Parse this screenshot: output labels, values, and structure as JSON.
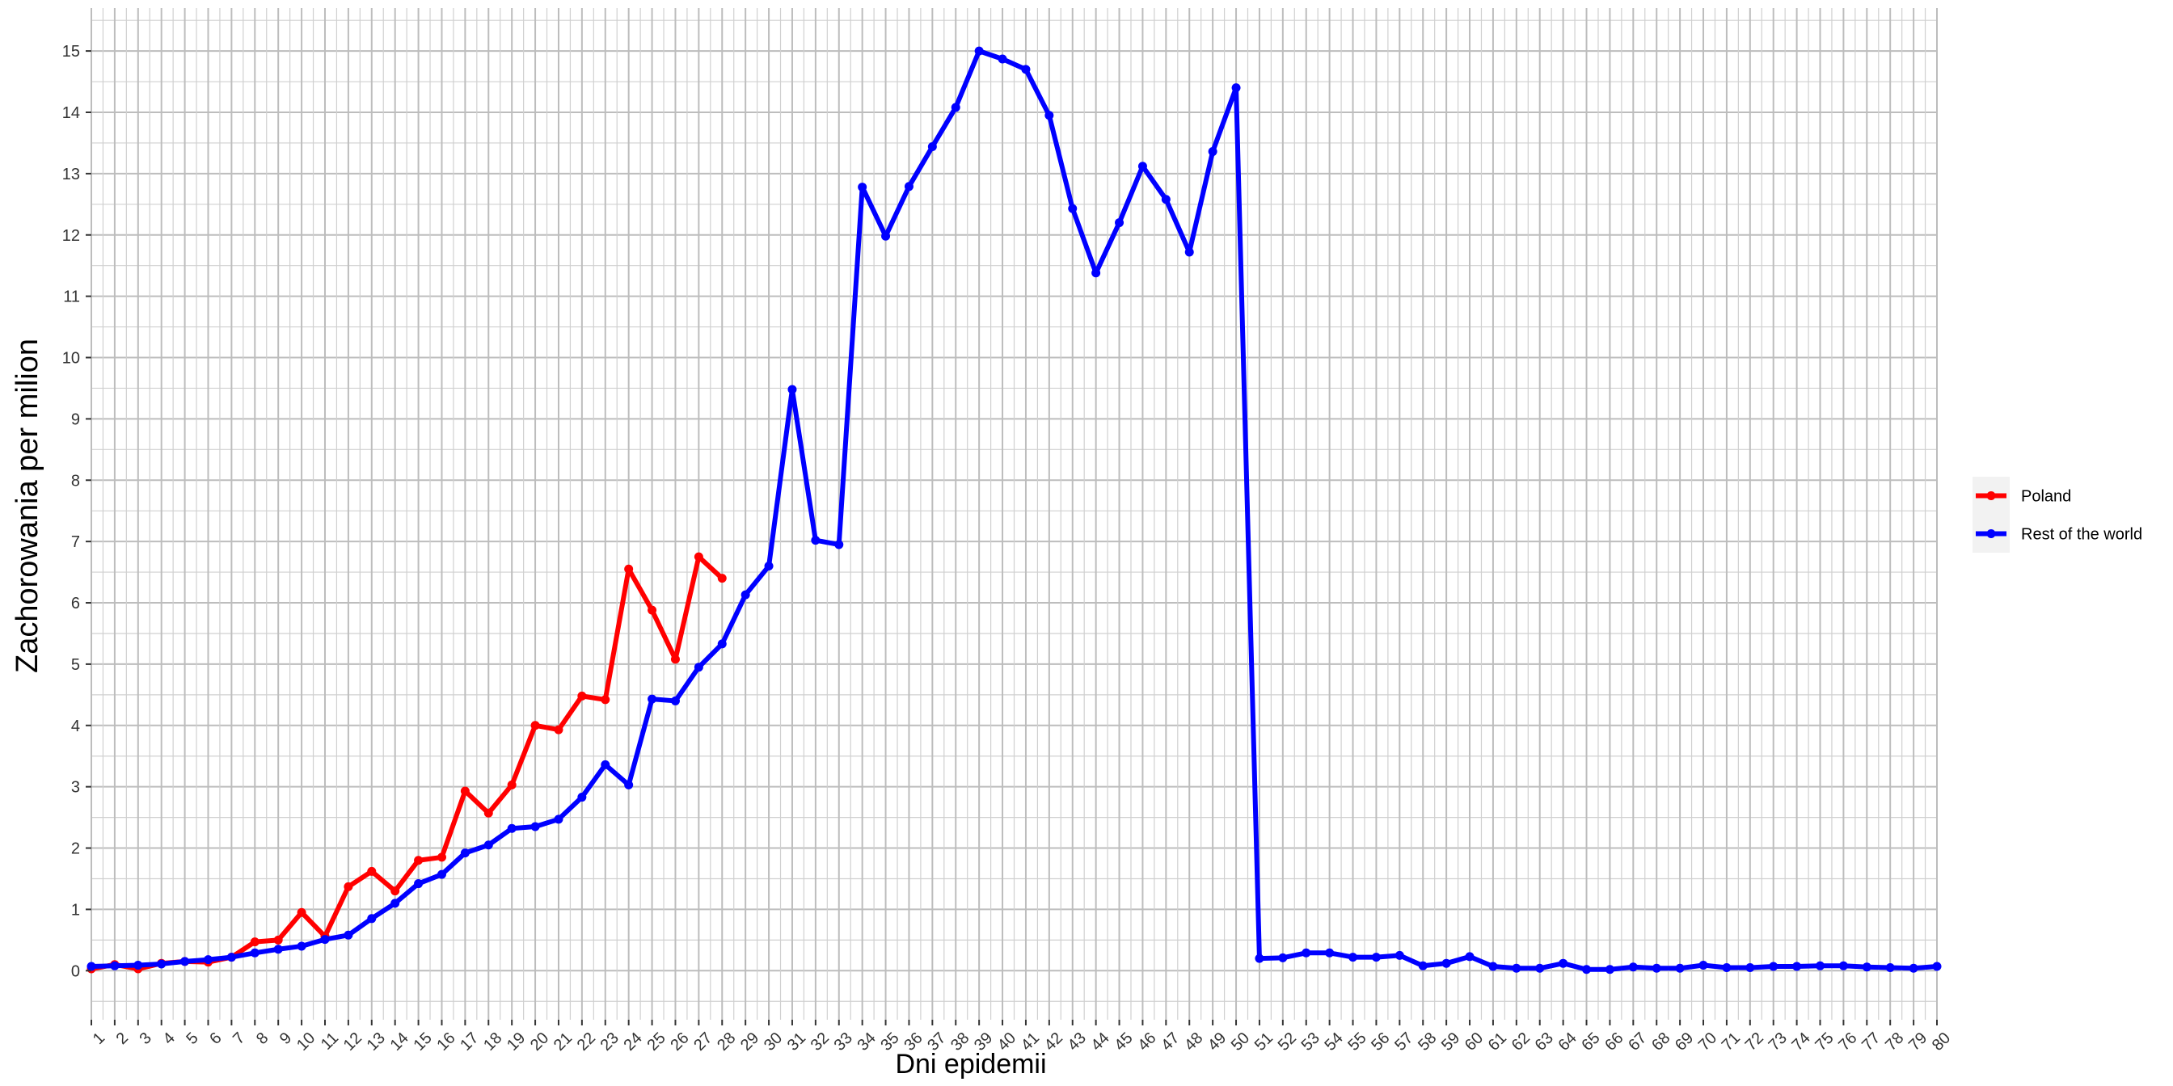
{
  "chart_data": {
    "type": "line",
    "title": "",
    "xlabel": "Dni epidemii",
    "ylabel": "Zachorowania per milion",
    "xlim": [
      1,
      80
    ],
    "ylim": [
      -0.8,
      15.7
    ],
    "y_ticks": [
      0,
      1,
      2,
      3,
      4,
      5,
      6,
      7,
      8,
      9,
      10,
      11,
      12,
      13,
      14,
      15
    ],
    "x_ticks": [
      1,
      2,
      3,
      4,
      5,
      6,
      7,
      8,
      9,
      10,
      11,
      12,
      13,
      14,
      15,
      16,
      17,
      18,
      19,
      20,
      21,
      22,
      23,
      24,
      25,
      26,
      27,
      28,
      29,
      30,
      31,
      32,
      33,
      34,
      35,
      36,
      37,
      38,
      39,
      40,
      41,
      42,
      43,
      44,
      45,
      46,
      47,
      48,
      49,
      50,
      51,
      52,
      53,
      54,
      55,
      56,
      57,
      58,
      59,
      60,
      61,
      62,
      63,
      64,
      65,
      66,
      67,
      68,
      69,
      70,
      71,
      72,
      73,
      74,
      75,
      76,
      77,
      78,
      79,
      80
    ],
    "grid": true,
    "legend_position": "right",
    "series": [
      {
        "name": "Poland",
        "color": "#ff0000",
        "x": [
          1,
          2,
          3,
          4,
          5,
          6,
          7,
          8,
          9,
          10,
          11,
          12,
          13,
          14,
          15,
          16,
          17,
          18,
          19,
          20,
          21,
          22,
          23,
          24,
          25,
          26,
          27,
          28
        ],
        "y": [
          0.03,
          0.1,
          0.03,
          0.12,
          0.15,
          0.14,
          0.22,
          0.47,
          0.5,
          0.95,
          0.56,
          1.37,
          1.62,
          1.3,
          1.8,
          1.85,
          2.93,
          2.57,
          3.03,
          4.0,
          3.93,
          4.48,
          4.42,
          6.55,
          5.88,
          5.08,
          6.75,
          6.4
        ]
      },
      {
        "name": "Rest of the world",
        "color": "#0000ff",
        "x": [
          1,
          2,
          3,
          4,
          5,
          6,
          7,
          8,
          9,
          10,
          11,
          12,
          13,
          14,
          15,
          16,
          17,
          18,
          19,
          20,
          21,
          22,
          23,
          24,
          25,
          26,
          27,
          28,
          29,
          30,
          31,
          32,
          33,
          34,
          35,
          36,
          37,
          38,
          39,
          40,
          41,
          42,
          43,
          44,
          45,
          46,
          47,
          48,
          49,
          50,
          51,
          52,
          53,
          54,
          55,
          56,
          57,
          58,
          59,
          60,
          61,
          62,
          63,
          64,
          65,
          66,
          67,
          68,
          69,
          70,
          71,
          72,
          73,
          74,
          75,
          76,
          77,
          78,
          79,
          80
        ],
        "y": [
          0.07,
          0.08,
          0.09,
          0.11,
          0.15,
          0.18,
          0.22,
          0.29,
          0.35,
          0.4,
          0.51,
          0.58,
          0.85,
          1.1,
          1.42,
          1.57,
          1.92,
          2.05,
          2.32,
          2.35,
          2.47,
          2.83,
          3.36,
          3.03,
          4.43,
          4.4,
          4.95,
          5.33,
          6.13,
          6.6,
          9.48,
          7.02,
          6.95,
          12.78,
          11.98,
          12.79,
          13.44,
          14.08,
          15.0,
          14.87,
          14.7,
          13.95,
          12.43,
          11.38,
          12.2,
          13.12,
          12.58,
          11.72,
          13.36,
          14.4,
          0.2,
          0.21,
          0.29,
          0.29,
          0.22,
          0.22,
          0.25,
          0.08,
          0.12,
          0.23,
          0.07,
          0.04,
          0.04,
          0.12,
          0.02,
          0.02,
          0.06,
          0.04,
          0.04,
          0.09,
          0.05,
          0.05,
          0.07,
          0.07,
          0.08,
          0.08,
          0.06,
          0.05,
          0.04,
          0.07
        ]
      }
    ]
  }
}
